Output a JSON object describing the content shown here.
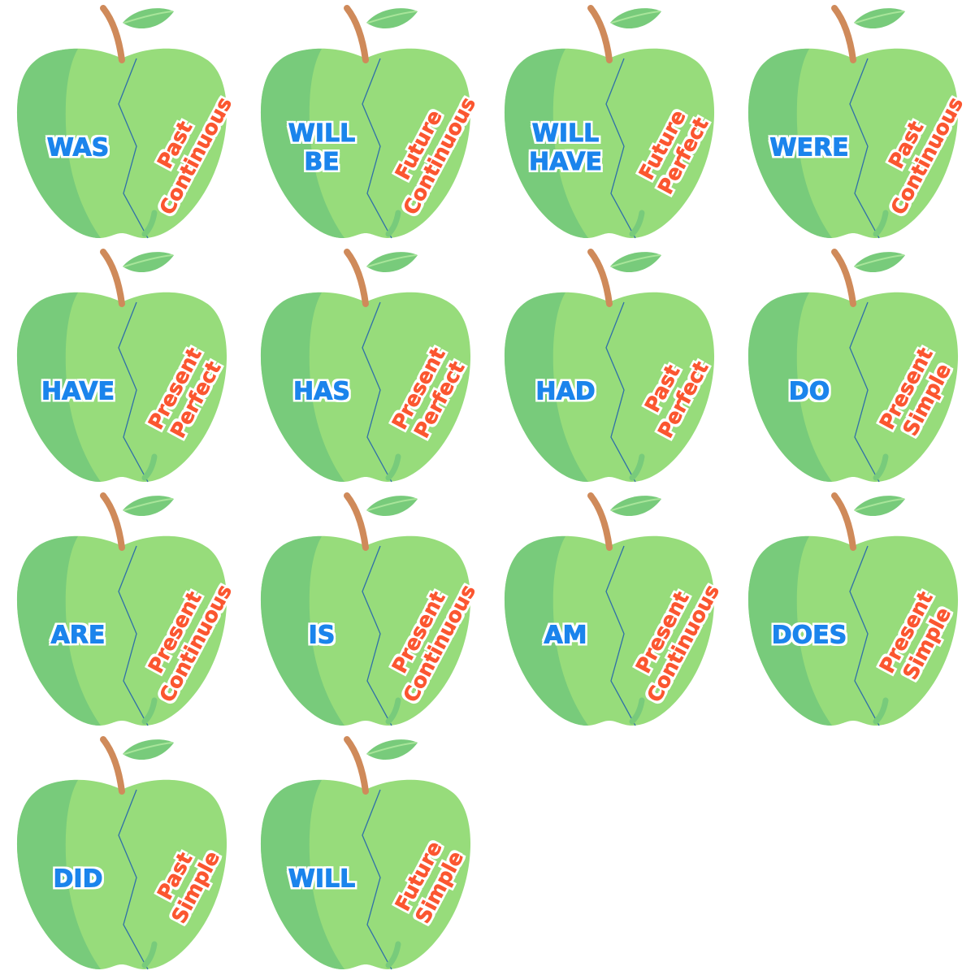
{
  "colors": {
    "apple_light": "#97dc7b",
    "apple_dark": "#78cb7b",
    "stem": "#cf8a5a",
    "leaf": "#78cb7b",
    "crack_line": "#2f6fa8",
    "verb_text": "#1b84ec",
    "tense_text": "#fb5630"
  },
  "icons": [
    "apple-icon",
    "stem-icon",
    "leaf-icon"
  ],
  "apples": [
    {
      "verb": "WAS",
      "tense": "Past\nContinuous"
    },
    {
      "verb": "WILL\nBE",
      "tense": "Future\nContinuous"
    },
    {
      "verb": "WILL\nHAVE",
      "tense": "Future\nPerfect"
    },
    {
      "verb": "WERE",
      "tense": "Past\nContinuous"
    },
    {
      "verb": "HAVE",
      "tense": "Present\nPerfect"
    },
    {
      "verb": "HAS",
      "tense": "Present\nPerfect"
    },
    {
      "verb": "HAD",
      "tense": "Past\nPerfect"
    },
    {
      "verb": "DO",
      "tense": "Present\nSimple"
    },
    {
      "verb": "ARE",
      "tense": "Present\nContinuous"
    },
    {
      "verb": "IS",
      "tense": "Present\nContinuous"
    },
    {
      "verb": "AM",
      "tense": "Present\nContinuous"
    },
    {
      "verb": "DOES",
      "tense": "Present\nSimple"
    },
    {
      "verb": "DID",
      "tense": "Past\nSimple"
    },
    {
      "verb": "WILL",
      "tense": "Future\nSimple"
    }
  ]
}
